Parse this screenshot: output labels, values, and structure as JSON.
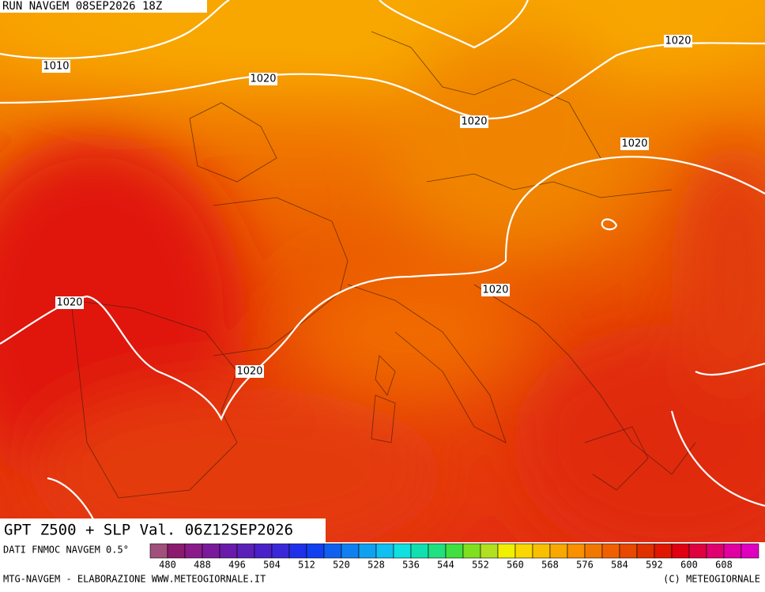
{
  "header": {
    "run": "RUN NAVGEM 08SEP2026 18Z"
  },
  "title": "GPT Z500 + SLP Val. 06Z12SEP2026",
  "isobar_labels": [
    "1010",
    "1020",
    "1020",
    "1020",
    "1020",
    "1020",
    "1020",
    "1020"
  ],
  "legend": {
    "source": "DATI FNMOC NAVGEM 0.5°",
    "labels": [
      480,
      488,
      496,
      504,
      512,
      520,
      528,
      536,
      544,
      552,
      560,
      568,
      576,
      584,
      592,
      600,
      608
    ],
    "colors": [
      "#a0507a",
      "#8c1a6e",
      "#8a1a8a",
      "#7a1a9a",
      "#6a1aaa",
      "#5a20b8",
      "#4a20c8",
      "#3a28d8",
      "#2030e8",
      "#1040f0",
      "#1060f0",
      "#1080f0",
      "#10a0f0",
      "#10c0f0",
      "#10e0e0",
      "#10e0b0",
      "#20e080",
      "#40e040",
      "#80e020",
      "#b0e020",
      "#f0f000",
      "#f8d800",
      "#f8c000",
      "#f8a800",
      "#f89000",
      "#f07800",
      "#f06000",
      "#e84800",
      "#e03000",
      "#e01800",
      "#e00010",
      "#e00040",
      "#e00070",
      "#e000a0",
      "#e000c0"
    ]
  },
  "footer": {
    "left": "MTG-NAVGEM - ELABORAZIONE WWW.METEOGIORNALE.IT",
    "right": "(C) METEOGIORNALE"
  }
}
